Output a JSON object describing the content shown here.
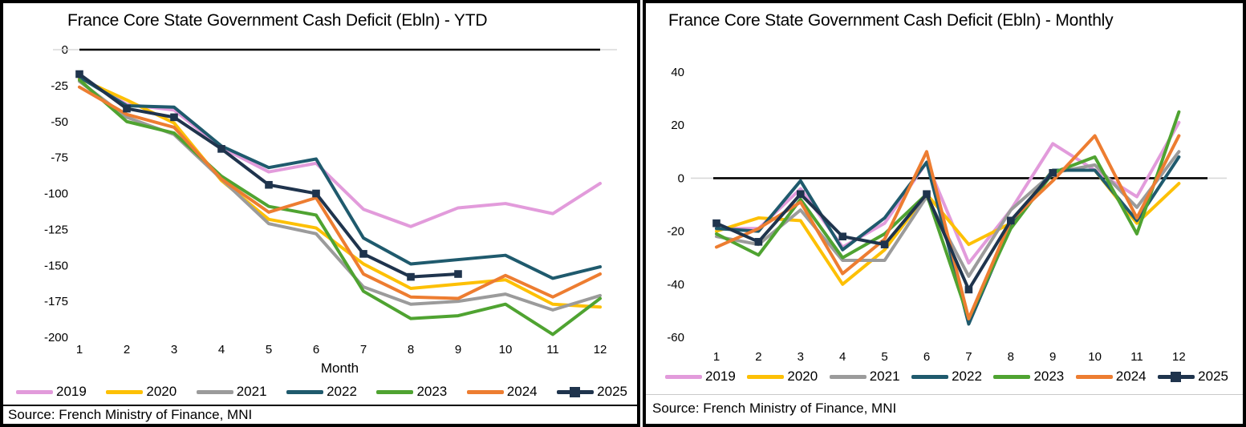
{
  "source_note": "Source: French Ministry of Finance, MNI",
  "chart_data": [
    {
      "type": "line",
      "title": "France Core State Government Cash Deficit (Ebln) - YTD",
      "xlabel": "Month",
      "ylabel": "",
      "x": [
        1,
        2,
        3,
        4,
        5,
        6,
        7,
        8,
        9,
        10,
        11,
        12
      ],
      "ylim": [
        -200,
        0
      ],
      "yticks": [
        0,
        -25,
        -50,
        -75,
        -100,
        -125,
        -150,
        -175,
        -200
      ],
      "grid": false,
      "legend_position": "bottom",
      "zero_axis_color": "#000000",
      "series": [
        {
          "name": "2019",
          "color": "#e29bdb",
          "values": [
            -19,
            -38,
            -42,
            -68,
            -85,
            -79,
            -111,
            -123,
            -110,
            -107,
            -114,
            -93
          ]
        },
        {
          "name": "2020",
          "color": "#fdc005",
          "values": [
            -20,
            -35,
            -51,
            -91,
            -118,
            -124,
            -149,
            -166,
            -163,
            -160,
            -177,
            -179
          ]
        },
        {
          "name": "2021",
          "color": "#9b9b9b",
          "values": [
            -22,
            -47,
            -59,
            -90,
            -121,
            -128,
            -165,
            -177,
            -175,
            -170,
            -181,
            -171
          ]
        },
        {
          "name": "2022",
          "color": "#1f5a6d",
          "values": [
            -19,
            -39,
            -40,
            -67,
            -82,
            -76,
            -131,
            -149,
            -146,
            -143,
            -159,
            -151
          ]
        },
        {
          "name": "2023",
          "color": "#4fa331",
          "values": [
            -21,
            -50,
            -58,
            -88,
            -109,
            -115,
            -168,
            -187,
            -185,
            -177,
            -198,
            -173
          ]
        },
        {
          "name": "2024",
          "color": "#ed7d31",
          "values": [
            -26,
            -45,
            -54,
            -90,
            -113,
            -103,
            -156,
            -172,
            -173,
            -157,
            -172,
            -156
          ]
        },
        {
          "name": "2025",
          "color": "#1f344d",
          "marker": "square",
          "values": [
            -17,
            -41,
            -47,
            -69,
            -94,
            -100,
            -142,
            -158,
            -156
          ]
        }
      ],
      "source": "Source: French Ministry of Finance, MNI"
    },
    {
      "type": "line",
      "title": "France Core State Government Cash Deficit (Ebln) - Monthly",
      "xlabel": "",
      "ylabel": "",
      "x": [
        1,
        2,
        3,
        4,
        5,
        6,
        7,
        8,
        9,
        10,
        11,
        12
      ],
      "ylim": [
        -60,
        40
      ],
      "yticks": [
        40,
        20,
        0,
        -20,
        -40,
        -60
      ],
      "grid": false,
      "legend_position": "bottom",
      "zero_axis_color": "#000000",
      "series": [
        {
          "name": "2019",
          "color": "#e29bdb",
          "values": [
            -19,
            -19,
            -4,
            -26,
            -17,
            6,
            -32,
            -12,
            13,
            3,
            -7,
            21
          ]
        },
        {
          "name": "2020",
          "color": "#fdc005",
          "values": [
            -20,
            -15,
            -16,
            -40,
            -27,
            -6,
            -25,
            -17,
            3,
            3,
            -17,
            -2
          ]
        },
        {
          "name": "2021",
          "color": "#9b9b9b",
          "values": [
            -22,
            -25,
            -12,
            -31,
            -31,
            -7,
            -37,
            -12,
            2,
            5,
            -11,
            10
          ]
        },
        {
          "name": "2022",
          "color": "#1f5a6d",
          "values": [
            -19,
            -20,
            -1,
            -27,
            -15,
            6,
            -55,
            -18,
            3,
            3,
            -16,
            8
          ]
        },
        {
          "name": "2023",
          "color": "#4fa331",
          "values": [
            -21,
            -29,
            -8,
            -30,
            -21,
            -6,
            -53,
            -19,
            2,
            8,
            -21,
            25
          ]
        },
        {
          "name": "2024",
          "color": "#ed7d31",
          "values": [
            -26,
            -19,
            -9,
            -36,
            -23,
            10,
            -53,
            -16,
            -1,
            16,
            -15,
            16
          ]
        },
        {
          "name": "2025",
          "color": "#1f344d",
          "marker": "square",
          "values": [
            -17,
            -24,
            -6,
            -22,
            -25,
            -6,
            -42,
            -16,
            2
          ]
        }
      ],
      "source": "Source: French Ministry of Finance, MNI"
    }
  ]
}
